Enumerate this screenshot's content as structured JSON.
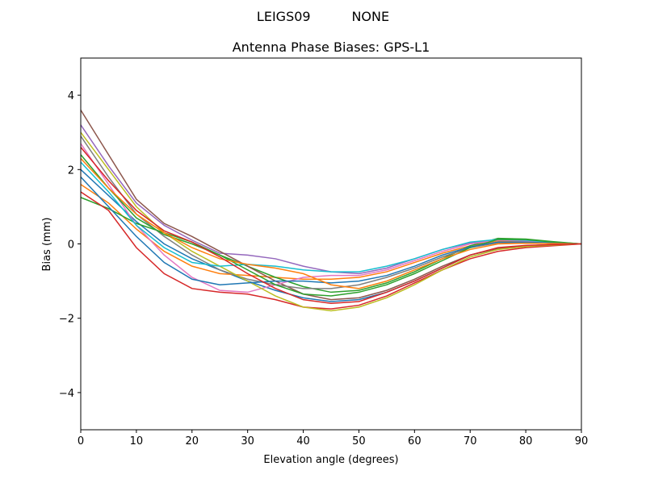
{
  "suptitle": "LEIGS09          NONE",
  "chart_data": {
    "type": "line",
    "title": "Antenna Phase Biases: GPS-L1",
    "xlabel": "Elevation angle (degrees)",
    "ylabel": "Bias (mm)",
    "xlim": [
      0,
      90
    ],
    "ylim": [
      -5,
      5
    ],
    "xticks": [
      0,
      10,
      20,
      30,
      40,
      50,
      60,
      70,
      80,
      90
    ],
    "yticks": [
      -4,
      -2,
      0,
      2,
      4
    ],
    "ytick_labels": [
      "−4",
      "−2",
      "0",
      "2",
      "4"
    ],
    "grid": false,
    "x": [
      0,
      5,
      10,
      15,
      20,
      25,
      30,
      35,
      40,
      45,
      50,
      55,
      60,
      65,
      70,
      75,
      80,
      85,
      90
    ],
    "series": [
      {
        "color": "#1f77b4",
        "values": [
          2.0,
          1.3,
          0.6,
          0.0,
          -0.4,
          -0.7,
          -1.0,
          -1.25,
          -1.45,
          -1.55,
          -1.5,
          -1.3,
          -1.0,
          -0.65,
          -0.3,
          -0.12,
          -0.05,
          -0.02,
          0
        ]
      },
      {
        "color": "#ff7f0e",
        "values": [
          1.6,
          1.1,
          0.4,
          -0.2,
          -0.6,
          -0.8,
          -0.85,
          -0.9,
          -0.95,
          -0.95,
          -0.9,
          -0.75,
          -0.5,
          -0.25,
          -0.05,
          0.08,
          0.07,
          0.03,
          0
        ]
      },
      {
        "color": "#2ca02c",
        "values": [
          1.25,
          0.95,
          0.55,
          0.3,
          0.05,
          -0.3,
          -0.6,
          -0.9,
          -1.15,
          -1.3,
          -1.25,
          -1.05,
          -0.75,
          -0.4,
          -0.05,
          0.15,
          0.13,
          0.06,
          0
        ]
      },
      {
        "color": "#d62728",
        "values": [
          1.4,
          0.9,
          -0.1,
          -0.8,
          -1.2,
          -1.3,
          -1.35,
          -1.5,
          -1.7,
          -1.75,
          -1.65,
          -1.4,
          -1.05,
          -0.7,
          -0.4,
          -0.2,
          -0.1,
          -0.05,
          0
        ]
      },
      {
        "color": "#9467bd",
        "values": [
          3.2,
          2.1,
          1.1,
          0.5,
          0.1,
          -0.25,
          -0.3,
          -0.4,
          -0.6,
          -0.75,
          -0.8,
          -0.65,
          -0.4,
          -0.15,
          0.03,
          0.12,
          0.1,
          0.04,
          0
        ]
      },
      {
        "color": "#8c564b",
        "values": [
          3.6,
          2.4,
          1.2,
          0.55,
          0.2,
          -0.2,
          -0.6,
          -1.0,
          -1.35,
          -1.5,
          -1.45,
          -1.25,
          -0.95,
          -0.6,
          -0.3,
          -0.12,
          -0.05,
          -0.02,
          0
        ]
      },
      {
        "color": "#e377c2",
        "values": [
          2.7,
          1.6,
          0.5,
          -0.3,
          -0.9,
          -1.25,
          -1.3,
          -1.1,
          -0.9,
          -0.85,
          -0.85,
          -0.7,
          -0.45,
          -0.2,
          0.0,
          0.1,
          0.08,
          0.03,
          0
        ]
      },
      {
        "color": "#7f7f7f",
        "values": [
          2.9,
          1.8,
          0.8,
          0.2,
          -0.3,
          -0.7,
          -0.95,
          -1.1,
          -1.2,
          -1.2,
          -1.1,
          -0.9,
          -0.65,
          -0.35,
          -0.1,
          0.03,
          0.03,
          0.01,
          0
        ]
      },
      {
        "color": "#bcbd22",
        "values": [
          3.0,
          2.0,
          1.0,
          0.3,
          -0.2,
          -0.6,
          -1.0,
          -1.4,
          -1.7,
          -1.8,
          -1.7,
          -1.45,
          -1.1,
          -0.7,
          -0.35,
          -0.15,
          -0.07,
          -0.03,
          0
        ]
      },
      {
        "color": "#17becf",
        "values": [
          2.2,
          1.4,
          0.5,
          -0.1,
          -0.5,
          -0.6,
          -0.55,
          -0.6,
          -0.7,
          -0.75,
          -0.75,
          -0.6,
          -0.4,
          -0.15,
          0.05,
          0.12,
          0.1,
          0.04,
          0
        ]
      },
      {
        "color": "#2ca02c",
        "values": [
          2.4,
          1.5,
          0.7,
          0.25,
          0.0,
          -0.3,
          -0.7,
          -1.1,
          -1.35,
          -1.4,
          -1.3,
          -1.1,
          -0.8,
          -0.45,
          -0.1,
          0.12,
          0.12,
          0.05,
          0
        ]
      },
      {
        "color": "#1f77b4",
        "values": [
          1.8,
          1.0,
          0.2,
          -0.5,
          -0.95,
          -1.1,
          -1.05,
          -1.0,
          -1.0,
          -1.05,
          -1.0,
          -0.85,
          -0.6,
          -0.3,
          -0.08,
          0.05,
          0.05,
          0.02,
          0
        ]
      },
      {
        "color": "#ff7f0e",
        "values": [
          2.3,
          1.5,
          0.8,
          0.3,
          -0.1,
          -0.4,
          -0.55,
          -0.65,
          -0.8,
          -1.1,
          -1.2,
          -1.0,
          -0.7,
          -0.4,
          -0.15,
          0.0,
          0.02,
          0.01,
          0
        ]
      },
      {
        "color": "#d62728",
        "values": [
          2.6,
          1.7,
          0.9,
          0.35,
          0.05,
          -0.35,
          -0.8,
          -1.2,
          -1.5,
          -1.6,
          -1.55,
          -1.3,
          -1.0,
          -0.65,
          -0.3,
          -0.1,
          -0.04,
          -0.02,
          0
        ]
      }
    ]
  }
}
